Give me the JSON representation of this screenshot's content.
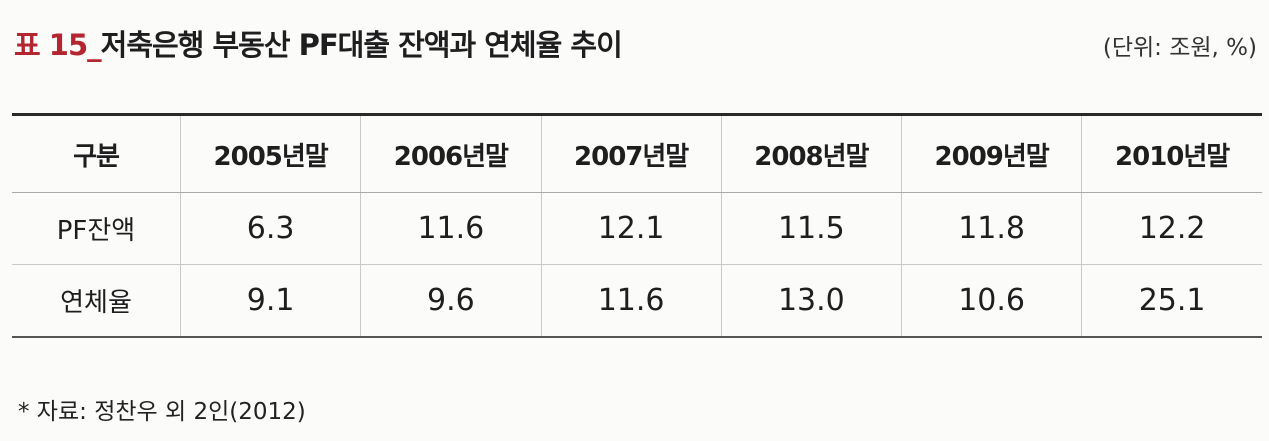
{
  "header": {
    "label": "표 15_",
    "title": "저축은행 부동산 PF대출 잔액과 연체율 추이",
    "unit": "(단위: 조원, %)"
  },
  "table": {
    "columns": [
      "구분",
      "2005년말",
      "2006년말",
      "2007년말",
      "2008년말",
      "2009년말",
      "2010년말"
    ],
    "rows": [
      [
        "PF잔액",
        "6.3",
        "11.6",
        "12.1",
        "11.5",
        "11.8",
        "12.2"
      ],
      [
        "연체율",
        "9.1",
        "9.6",
        "11.6",
        "13.0",
        "10.6",
        "25.1"
      ]
    ]
  },
  "source": "* 자료: 정찬우 외 2인(2012)"
}
